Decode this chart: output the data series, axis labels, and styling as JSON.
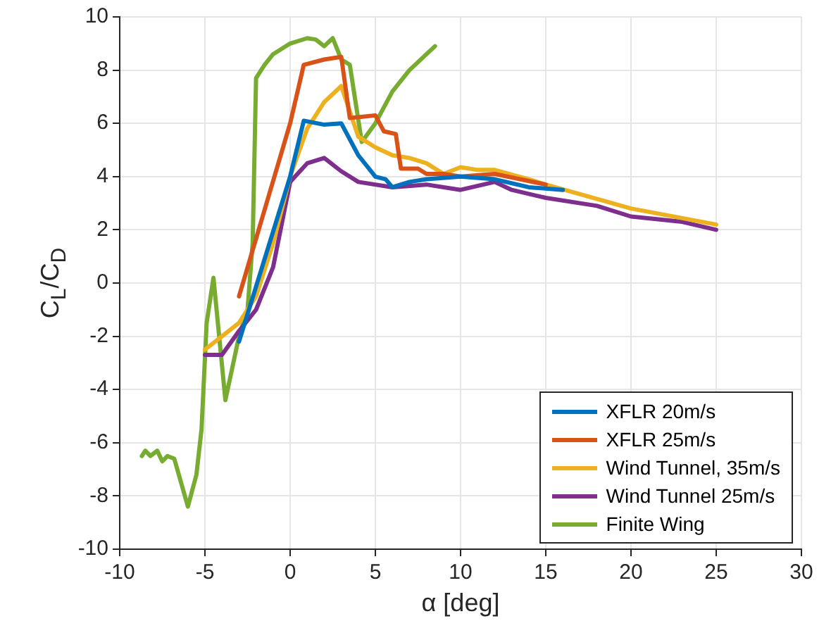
{
  "chart_data": {
    "type": "line",
    "xlabel": "α [deg]",
    "ylabel": "C$_{L}$/C$_{D}$",
    "xlim": [
      -10,
      30
    ],
    "xticks": [
      -10,
      -5,
      0,
      5,
      10,
      15,
      20,
      25,
      30
    ],
    "ylim": [
      -10,
      10
    ],
    "yticks": [
      -10,
      -8,
      -6,
      -4,
      -2,
      0,
      2,
      4,
      6,
      8,
      10
    ],
    "grid": true,
    "legend": "bottom right",
    "marker": "none",
    "line_style": "solid",
    "series": [
      {
        "name": "XFLR 20m/s",
        "color": "#0072bd",
        "x": [
          -3,
          0,
          0.8,
          2,
          3,
          4,
          5,
          5.6,
          6,
          7,
          8,
          10,
          12,
          14,
          16
        ],
        "values": [
          -2.2,
          4,
          6.1,
          5.95,
          6,
          4.8,
          4,
          3.9,
          3.6,
          3.8,
          3.9,
          4,
          3.9,
          3.6,
          3.5
        ]
      },
      {
        "name": "XFLR 25m/s",
        "color": "#d95319",
        "x": [
          -3,
          0,
          0.8,
          2,
          3,
          3.5,
          5,
          5.5,
          6.2,
          6.5,
          7.5,
          8,
          9,
          10,
          12,
          15
        ],
        "values": [
          -0.5,
          6,
          8.2,
          8.4,
          8.5,
          6.2,
          6.3,
          5.7,
          5.6,
          4.3,
          4.3,
          4.1,
          4.1,
          4,
          4.1,
          3.7
        ]
      },
      {
        "name": "Wind Tunnel, 35m/s",
        "color": "#edb120",
        "x": [
          -5,
          -4,
          -3,
          -2,
          -1,
          0,
          1,
          2,
          3,
          4,
          5,
          6,
          7,
          8,
          9,
          10,
          11,
          12,
          14,
          15,
          20,
          25
        ],
        "values": [
          -2.5,
          -2,
          -1.5,
          -0.5,
          1.5,
          4,
          5.8,
          6.8,
          7.4,
          5.5,
          5.1,
          4.8,
          4.7,
          4.5,
          4.1,
          4.35,
          4.25,
          4.25,
          3.9,
          3.7,
          2.8,
          2.2
        ]
      },
      {
        "name": "Wind Tunnel 25m/s",
        "color": "#7e2f8e",
        "x": [
          -5,
          -4,
          -3,
          -2,
          -1,
          0,
          1,
          2,
          3,
          4,
          6,
          8,
          10,
          12,
          13,
          15,
          18,
          20,
          23,
          25
        ],
        "values": [
          -2.7,
          -2.7,
          -1.8,
          -1,
          0.6,
          3.8,
          4.5,
          4.7,
          4.2,
          3.8,
          3.6,
          3.7,
          3.5,
          3.8,
          3.5,
          3.2,
          2.9,
          2.5,
          2.3,
          2
        ]
      },
      {
        "name": "Finite Wing",
        "color": "#77ac30",
        "x": [
          -8.7,
          -8.5,
          -8.2,
          -7.8,
          -7.5,
          -7.2,
          -6.8,
          -6,
          -5.5,
          -5.2,
          -4.9,
          -4.5,
          -3.8,
          -3,
          -2.5,
          -2.2,
          -2,
          -1.5,
          -1,
          0,
          1,
          1.5,
          2,
          2.5,
          3,
          3.5,
          4.2,
          5,
          6,
          7,
          8,
          8.5
        ],
        "values": [
          -6.5,
          -6.3,
          -6.5,
          -6.3,
          -6.7,
          -6.5,
          -6.6,
          -8.4,
          -7.2,
          -5.5,
          -1.5,
          0.2,
          -4.4,
          -2,
          -1,
          1.5,
          7.7,
          8.2,
          8.6,
          9,
          9.2,
          9.15,
          8.9,
          9.2,
          8.4,
          8.2,
          5.3,
          6,
          7.2,
          8,
          8.6,
          8.9
        ]
      }
    ]
  }
}
